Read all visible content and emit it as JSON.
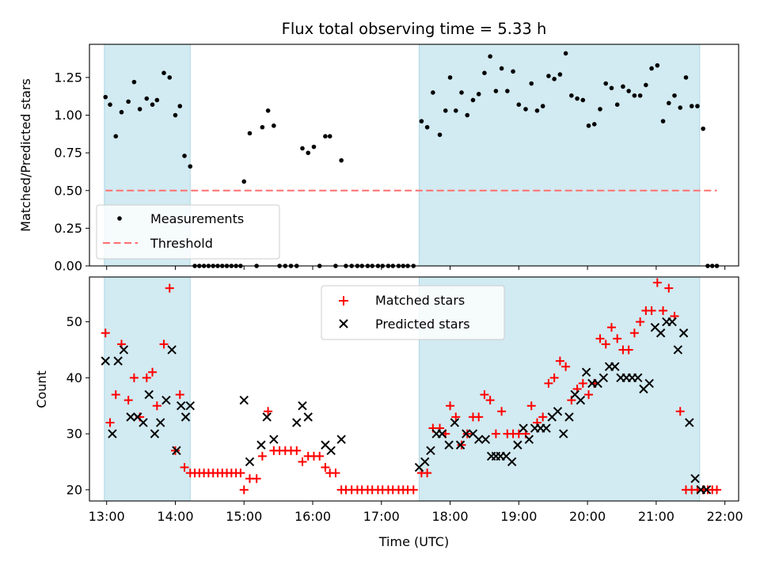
{
  "chart_data": [
    {
      "type": "scatter",
      "title": "Flux total observing time = 5.33 h",
      "xlabel": "",
      "ylabel": "Matched/Predicted stars",
      "ylim": [
        0,
        1.47
      ],
      "xlim": [
        "12:45",
        "22:12"
      ],
      "xticks": [
        "13:00",
        "14:00",
        "15:00",
        "16:00",
        "17:00",
        "18:00",
        "19:00",
        "20:00",
        "21:00",
        "22:00"
      ],
      "yticks": [
        "0.00",
        "0.25",
        "0.50",
        "0.75",
        "1.00",
        "1.25"
      ],
      "grid": false,
      "legend_position": "lower-left",
      "shaded_intervals": [
        [
          "12:58",
          "14:13"
        ],
        [
          "17:33",
          "21:38"
        ]
      ],
      "shade_color": "#add8e6",
      "series": [
        {
          "name": "Measurements",
          "marker": "dot",
          "color": "#000000",
          "x": [
            "12:59",
            "13:03",
            "13:08",
            "13:13",
            "13:19",
            "13:24",
            "13:29",
            "13:35",
            "13:40",
            "13:44",
            "13:50",
            "13:55",
            "14:00",
            "14:04",
            "14:08",
            "14:13",
            "14:17",
            "14:21",
            "14:25",
            "14:29",
            "14:33",
            "14:37",
            "14:41",
            "14:45",
            "14:49",
            "14:53",
            "14:57",
            "15:00",
            "15:05",
            "15:11",
            "15:16",
            "15:21",
            "15:26",
            "15:31",
            "15:36",
            "15:41",
            "15:46",
            "15:51",
            "15:56",
            "16:01",
            "16:06",
            "16:11",
            "16:15",
            "16:20",
            "16:25",
            "16:29",
            "16:34",
            "16:39",
            "16:43",
            "16:48",
            "16:52",
            "16:57",
            "17:01",
            "17:06",
            "17:10",
            "17:15",
            "17:19",
            "17:23",
            "17:28",
            "17:35",
            "17:40",
            "17:45",
            "17:51",
            "17:56",
            "18:00",
            "18:05",
            "18:10",
            "18:15",
            "18:20",
            "18:25",
            "18:30",
            "18:35",
            "18:40",
            "18:45",
            "18:50",
            "18:55",
            "19:00",
            "19:06",
            "19:11",
            "19:16",
            "19:21",
            "19:26",
            "19:31",
            "19:36",
            "19:41",
            "19:46",
            "19:51",
            "19:56",
            "20:01",
            "20:06",
            "20:11",
            "20:16",
            "20:21",
            "20:26",
            "20:31",
            "20:36",
            "20:41",
            "20:46",
            "20:51",
            "20:56",
            "21:01",
            "21:06",
            "21:11",
            "21:16",
            "21:21",
            "21:26",
            "21:31",
            "21:36",
            "21:41",
            "21:45",
            "21:49",
            "21:53"
          ],
          "y": [
            1.12,
            1.07,
            0.86,
            1.02,
            1.09,
            1.22,
            1.04,
            1.11,
            1.07,
            1.1,
            1.28,
            1.25,
            1.0,
            1.06,
            0.73,
            0.66,
            0,
            0,
            0,
            0,
            0,
            0,
            0,
            0,
            0,
            0,
            0,
            0.56,
            0.88,
            0,
            0.92,
            1.03,
            0.93,
            0,
            0,
            0,
            0,
            0.78,
            0.75,
            0.79,
            0,
            0.86,
            0.86,
            0,
            0.7,
            0,
            0,
            0,
            0,
            0,
            0,
            0,
            0,
            0,
            0,
            0,
            0,
            0,
            0,
            0.96,
            0.92,
            1.15,
            0.87,
            1.03,
            1.25,
            1.03,
            1.15,
            1.0,
            1.1,
            1.14,
            1.28,
            1.39,
            1.16,
            1.31,
            1.16,
            1.29,
            1.07,
            1.04,
            1.21,
            1.03,
            1.06,
            1.26,
            1.24,
            1.27,
            1.41,
            1.13,
            1.11,
            1.1,
            0.93,
            0.94,
            1.04,
            1.21,
            1.18,
            1.07,
            1.19,
            1.16,
            1.13,
            1.13,
            1.2,
            1.31,
            1.33,
            0.96,
            1.08,
            1.13,
            1.05,
            1.25,
            1.06,
            1.06,
            0.91,
            0,
            0,
            0
          ]
        },
        {
          "name": "Threshold",
          "marker": "dashed-line",
          "color": "#ff6f6f",
          "x": [
            "12:59",
            "21:53"
          ],
          "y": [
            0.5,
            0.5
          ]
        }
      ]
    },
    {
      "type": "scatter",
      "title": "",
      "xlabel": "Time (UTC)",
      "ylabel": "Count",
      "ylim": [
        18,
        58
      ],
      "xlim": [
        "12:45",
        "22:12"
      ],
      "xticks": [
        "13:00",
        "14:00",
        "15:00",
        "16:00",
        "17:00",
        "18:00",
        "19:00",
        "20:00",
        "21:00",
        "22:00"
      ],
      "yticks": [
        "20",
        "30",
        "40",
        "50"
      ],
      "grid": false,
      "legend_position": "upper-center",
      "shaded_intervals": [
        [
          "12:58",
          "14:13"
        ],
        [
          "17:33",
          "21:38"
        ]
      ],
      "shade_color": "#add8e6",
      "series": [
        {
          "name": "Matched stars",
          "marker": "plus",
          "color": "#ff0000",
          "x": [
            "12:59",
            "13:03",
            "13:08",
            "13:13",
            "13:19",
            "13:24",
            "13:29",
            "13:35",
            "13:40",
            "13:44",
            "13:50",
            "13:55",
            "14:00",
            "14:04",
            "14:08",
            "14:13",
            "14:17",
            "14:21",
            "14:25",
            "14:29",
            "14:33",
            "14:37",
            "14:41",
            "14:45",
            "14:49",
            "14:53",
            "14:57",
            "15:00",
            "15:05",
            "15:11",
            "15:16",
            "15:21",
            "15:26",
            "15:31",
            "15:36",
            "15:41",
            "15:46",
            "15:51",
            "15:56",
            "16:01",
            "16:06",
            "16:11",
            "16:15",
            "16:20",
            "16:25",
            "16:29",
            "16:34",
            "16:39",
            "16:43",
            "16:48",
            "16:52",
            "16:57",
            "17:01",
            "17:06",
            "17:10",
            "17:15",
            "17:19",
            "17:23",
            "17:28",
            "17:35",
            "17:40",
            "17:45",
            "17:51",
            "17:56",
            "18:00",
            "18:05",
            "18:10",
            "18:15",
            "18:20",
            "18:25",
            "18:30",
            "18:35",
            "18:40",
            "18:45",
            "18:50",
            "18:55",
            "19:00",
            "19:06",
            "19:11",
            "19:16",
            "19:21",
            "19:26",
            "19:31",
            "19:36",
            "19:41",
            "19:46",
            "19:51",
            "19:56",
            "20:01",
            "20:06",
            "20:11",
            "20:16",
            "20:21",
            "20:26",
            "20:31",
            "20:36",
            "20:41",
            "20:46",
            "20:51",
            "20:56",
            "21:01",
            "21:06",
            "21:11",
            "21:16",
            "21:21",
            "21:26",
            "21:31",
            "21:36",
            "21:41",
            "21:45",
            "21:49",
            "21:53"
          ],
          "y": [
            48,
            32,
            37,
            46,
            36,
            40,
            33,
            40,
            41,
            35,
            46,
            56,
            27,
            37,
            24,
            23,
            23,
            23,
            23,
            23,
            23,
            23,
            23,
            23,
            23,
            23,
            23,
            20,
            22,
            22,
            26,
            34,
            27,
            27,
            27,
            27,
            27,
            25,
            26,
            26,
            26,
            24,
            23,
            23,
            20,
            20,
            20,
            20,
            20,
            20,
            20,
            20,
            20,
            20,
            20,
            20,
            20,
            20,
            20,
            23,
            23,
            31,
            31,
            30,
            35,
            33,
            28,
            30,
            33,
            33,
            37,
            36,
            30,
            34,
            30,
            30,
            30,
            30,
            35,
            32,
            33,
            39,
            40,
            43,
            42,
            36,
            38,
            39,
            37,
            39,
            47,
            46,
            49,
            47,
            45,
            45,
            48,
            50,
            52,
            52,
            57,
            52,
            56,
            51,
            34,
            20,
            20,
            20,
            20,
            20,
            20,
            20
          ],
          "label_note": ""
        },
        {
          "name": "Predicted stars",
          "marker": "x",
          "color": "#000000",
          "x": [
            "12:59",
            "13:05",
            "13:10",
            "13:15",
            "13:21",
            "13:27",
            "13:32",
            "13:37",
            "13:42",
            "13:47",
            "13:52",
            "13:57",
            "14:01",
            "14:05",
            "14:09",
            "14:13",
            "15:00",
            "15:05",
            "15:15",
            "15:20",
            "15:26",
            "15:46",
            "15:51",
            "15:56",
            "16:11",
            "16:16",
            "16:25",
            "17:33",
            "17:38",
            "17:43",
            "17:48",
            "17:53",
            "17:59",
            "18:04",
            "18:09",
            "18:14",
            "18:20",
            "18:25",
            "18:31",
            "18:36",
            "18:40",
            "18:44",
            "18:49",
            "18:54",
            "18:59",
            "19:04",
            "19:09",
            "19:14",
            "19:19",
            "19:24",
            "19:29",
            "19:34",
            "19:39",
            "19:44",
            "19:49",
            "19:54",
            "19:59",
            "20:04",
            "20:09",
            "20:14",
            "20:19",
            "20:24",
            "20:29",
            "20:34",
            "20:39",
            "20:44",
            "20:49",
            "20:54",
            "20:59",
            "21:04",
            "21:09",
            "21:14",
            "21:19",
            "21:24",
            "21:29",
            "21:34",
            "21:39",
            "21:44"
          ],
          "y": [
            43,
            30,
            43,
            45,
            33,
            33,
            32,
            37,
            30,
            32,
            36,
            45,
            27,
            35,
            33,
            35,
            36,
            25,
            28,
            33,
            29,
            32,
            35,
            33,
            28,
            27,
            29,
            24,
            25,
            27,
            30,
            30,
            28,
            32,
            28,
            30,
            30,
            29,
            29,
            26,
            26,
            26,
            26,
            25,
            28,
            31,
            29,
            31,
            31,
            31,
            33,
            34,
            30,
            33,
            37,
            36,
            41,
            39,
            39,
            40,
            42,
            42,
            40,
            40,
            40,
            40,
            38,
            39,
            49,
            48,
            50,
            50,
            45,
            48,
            32,
            22,
            20,
            20
          ]
        }
      ]
    }
  ]
}
